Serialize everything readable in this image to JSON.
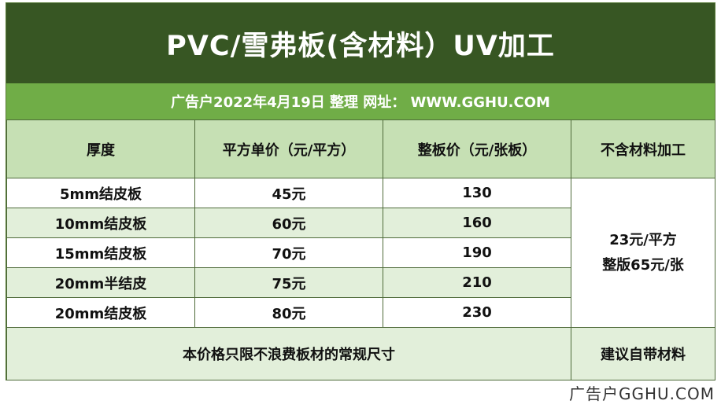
{
  "title": "PVC/雪弗板(含材料）UV加工",
  "subtitle": "广告户2022年4月19日  整理  网址：  WWW.GGHU.COM",
  "headers": [
    "厚度",
    "平方单价（元/平方）",
    "整板价（元/张板）",
    "不含材料加工"
  ],
  "rows": [
    {
      "thickness": "5mm结皮板",
      "sqm_price": "45元",
      "board_price": "130"
    },
    {
      "thickness": "10mm结皮板",
      "sqm_price": "60元",
      "board_price": "160"
    },
    {
      "thickness": "15mm结皮板",
      "sqm_price": "70元",
      "board_price": "190"
    },
    {
      "thickness": "20mm半结皮",
      "sqm_price": "75元",
      "board_price": "210"
    },
    {
      "thickness": "20mm结皮板",
      "sqm_price": "80元",
      "board_price": "230"
    }
  ],
  "no_material": {
    "line1": "23元/平方",
    "line2": "整版65元/张"
  },
  "footer": {
    "note": "本价格只限不浪费板材的常规尺寸",
    "suggestion": "建议自带材料"
  },
  "watermark": "广告户GGHU.COM"
}
